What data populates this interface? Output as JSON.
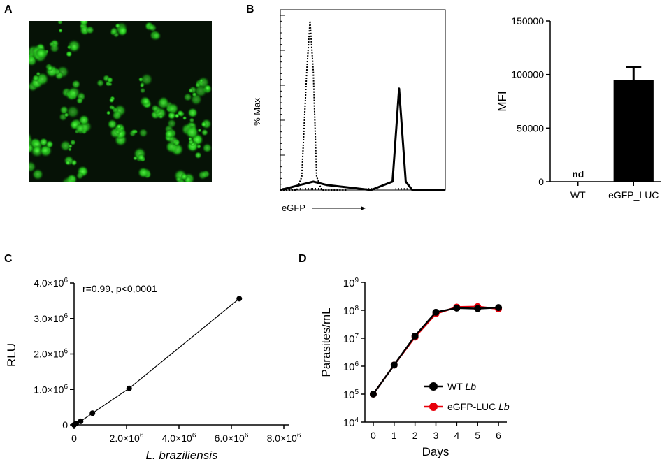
{
  "panels": {
    "a": {
      "label": "A"
    },
    "b": {
      "label": "B"
    },
    "c": {
      "label": "C"
    },
    "d": {
      "label": "D"
    }
  },
  "chart_data": [
    {
      "type": "line",
      "panel": "B-histogram",
      "ylabel": "% Max",
      "xlabel": "eGFP",
      "series": [
        {
          "style": "dotted",
          "x": [
            0.0,
            0.1,
            0.13,
            0.16,
            0.18,
            0.2,
            0.22,
            0.25,
            0.3,
            0.4
          ],
          "y": [
            0,
            0,
            8,
            70,
            100,
            70,
            8,
            0,
            0,
            0
          ]
        },
        {
          "style": "solid",
          "x": [
            0.0,
            0.12,
            0.2,
            0.28,
            0.55,
            0.68,
            0.72,
            0.76,
            0.8,
            1.0
          ],
          "y": [
            0,
            3,
            5,
            3,
            0,
            5,
            60,
            5,
            0,
            0
          ]
        }
      ]
    },
    {
      "type": "bar",
      "panel": "B-MFI",
      "categories": [
        "WT",
        "eGFP_LUC"
      ],
      "values": [
        0,
        95000
      ],
      "errors": [
        0,
        12000
      ],
      "ylabel": "MFI",
      "ylim": [
        0,
        150000
      ],
      "yticks": [
        "0",
        "50000",
        "100000",
        "150000"
      ],
      "annotation": "nd"
    },
    {
      "type": "scatter",
      "panel": "C",
      "xlabel": "L. braziliensis",
      "ylabel": "RLU",
      "annotation": "r=0.99, p<0,0001",
      "xlim": [
        0,
        8000000
      ],
      "ylim": [
        0,
        4000000
      ],
      "xticks": [
        {
          "v": 0,
          "base": "0",
          "exp": ""
        },
        {
          "v": 2000000,
          "base": "2.0×10",
          "exp": "6"
        },
        {
          "v": 4000000,
          "base": "4.0×10",
          "exp": "6"
        },
        {
          "v": 6000000,
          "base": "6.0×10",
          "exp": "6"
        },
        {
          "v": 8000000,
          "base": "8.0×10",
          "exp": "6"
        }
      ],
      "yticks": [
        {
          "v": 0,
          "base": "0",
          "exp": ""
        },
        {
          "v": 1000000,
          "base": "1.0×10",
          "exp": "6"
        },
        {
          "v": 2000000,
          "base": "2.0×10",
          "exp": "6"
        },
        {
          "v": 3000000,
          "base": "3.0×10",
          "exp": "6"
        },
        {
          "v": 4000000,
          "base": "4.0×10",
          "exp": "6"
        }
      ],
      "x": [
        0,
        80000,
        250000,
        700000,
        2100000,
        6300000
      ],
      "y": [
        0,
        40000,
        100000,
        330000,
        1030000,
        3560000
      ]
    },
    {
      "type": "line",
      "panel": "D",
      "xlabel": "Days",
      "ylabel": "Parasites/mL",
      "yscale": "log",
      "x": [
        0,
        1,
        2,
        3,
        4,
        5,
        6
      ],
      "xlim": [
        -0.4,
        6.4
      ],
      "ylim": [
        10000,
        1000000000
      ],
      "yticks": [
        {
          "v": 10000,
          "base": "10",
          "exp": "4"
        },
        {
          "v": 100000,
          "base": "10",
          "exp": "5"
        },
        {
          "v": 1000000,
          "base": "10",
          "exp": "6"
        },
        {
          "v": 10000000,
          "base": "10",
          "exp": "7"
        },
        {
          "v": 100000000,
          "base": "10",
          "exp": "8"
        },
        {
          "v": 1000000000,
          "base": "10",
          "exp": "9"
        }
      ],
      "series": [
        {
          "name": "eGFP-LUC",
          "name_italic": "Lb",
          "color": "#e8000b",
          "values": [
            100000,
            1100000,
            11000000,
            75000000,
            130000000,
            135000000,
            112000000
          ]
        },
        {
          "name": "WT",
          "name_italic": "Lb",
          "color": "#000000",
          "values": [
            100000,
            1100000,
            12000000,
            85000000,
            120000000,
            115000000,
            125000000
          ]
        }
      ],
      "legend": "bottom-right"
    }
  ]
}
